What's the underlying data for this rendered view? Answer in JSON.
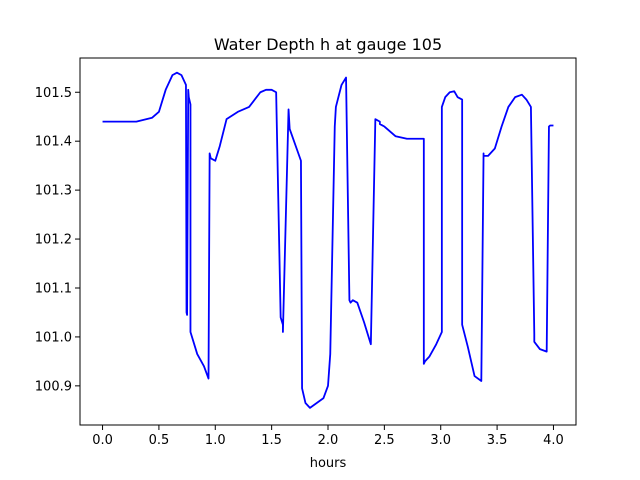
{
  "chart_data": {
    "type": "line",
    "title": "Water Depth h at gauge 105",
    "xlabel": "hours",
    "ylabel": "",
    "xlim": [
      -0.2,
      4.2
    ],
    "ylim": [
      100.82,
      101.57
    ],
    "x_ticks": [
      0.0,
      0.5,
      1.0,
      1.5,
      2.0,
      2.5,
      3.0,
      3.5,
      4.0
    ],
    "x_tick_labels": [
      "0.0",
      "0.5",
      "1.0",
      "1.5",
      "2.0",
      "2.5",
      "3.0",
      "3.5",
      "4.0"
    ],
    "y_ticks": [
      100.9,
      101.0,
      101.1,
      101.2,
      101.3,
      101.4,
      101.5
    ],
    "y_tick_labels": [
      "100.9",
      "101.0",
      "101.1",
      "101.2",
      "101.3",
      "101.4",
      "101.5"
    ],
    "grid": false,
    "series": [
      {
        "name": "",
        "color": "#0000ff",
        "x": [
          0.0,
          0.3,
          0.44,
          0.5,
          0.56,
          0.62,
          0.66,
          0.7,
          0.74,
          0.745,
          0.75,
          0.76,
          0.765,
          0.78,
          0.78,
          0.84,
          0.9,
          0.94,
          0.95,
          0.96,
          1.0,
          1.04,
          1.1,
          1.2,
          1.3,
          1.4,
          1.45,
          1.5,
          1.54,
          1.58,
          1.6,
          1.6,
          1.65,
          1.66,
          1.76,
          1.77,
          1.8,
          1.84,
          1.9,
          1.96,
          2.0,
          2.02,
          2.06,
          2.07,
          2.12,
          2.16,
          2.19,
          2.2,
          2.22,
          2.26,
          2.32,
          2.38,
          2.42,
          2.46,
          2.46,
          2.5,
          2.6,
          2.7,
          2.78,
          2.85,
          2.85,
          2.86,
          2.9,
          2.96,
          3.01,
          3.01,
          3.04,
          3.08,
          3.12,
          3.15,
          3.19,
          3.19,
          3.24,
          3.3,
          3.36,
          3.38,
          3.38,
          3.42,
          3.48,
          3.54,
          3.6,
          3.66,
          3.72,
          3.76,
          3.8,
          3.83,
          3.83,
          3.88,
          3.94,
          3.96,
          3.97,
          4.0
        ],
        "y": [
          101.44,
          101.44,
          101.448,
          101.46,
          101.505,
          101.535,
          101.54,
          101.535,
          101.515,
          101.05,
          101.045,
          101.505,
          101.49,
          101.475,
          101.01,
          100.965,
          100.94,
          100.915,
          101.375,
          101.365,
          101.36,
          101.39,
          101.445,
          101.46,
          101.47,
          101.5,
          101.505,
          101.505,
          101.5,
          101.04,
          101.025,
          101.01,
          101.465,
          101.425,
          101.36,
          100.895,
          100.865,
          100.855,
          100.865,
          100.875,
          100.9,
          100.965,
          101.43,
          101.47,
          101.515,
          101.53,
          101.075,
          101.07,
          101.075,
          101.07,
          101.03,
          100.985,
          101.445,
          101.44,
          101.435,
          101.43,
          101.41,
          101.405,
          101.405,
          101.405,
          100.945,
          100.95,
          100.96,
          100.985,
          101.01,
          101.47,
          101.49,
          101.5,
          101.502,
          101.49,
          101.485,
          101.025,
          100.98,
          100.92,
          100.91,
          101.375,
          101.37,
          101.37,
          101.385,
          101.43,
          101.47,
          101.49,
          101.495,
          101.485,
          101.47,
          101.005,
          100.99,
          100.975,
          100.97,
          101.43,
          101.432,
          101.432
        ]
      }
    ]
  }
}
